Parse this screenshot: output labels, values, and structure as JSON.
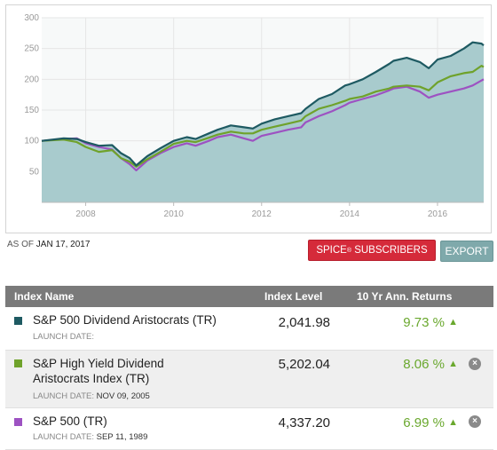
{
  "chart_data": {
    "type": "area",
    "x_ticks": [
      "2008",
      "2010",
      "2012",
      "2014",
      "2016"
    ],
    "y_ticks": [
      50,
      100,
      150,
      200,
      250,
      300
    ],
    "xlim": [
      2007.0,
      2017.05
    ],
    "ylim": [
      0,
      300
    ],
    "grid": true,
    "series": [
      {
        "name": "S&P 500 Dividend Aristocrats (TR)",
        "color": "#1e5a62",
        "fill": "#a8cbcd",
        "x": [
          2007.0,
          2007.5,
          2007.8,
          2008.0,
          2008.3,
          2008.6,
          2008.8,
          2009.0,
          2009.15,
          2009.4,
          2009.7,
          2010.0,
          2010.3,
          2010.5,
          2010.8,
          2011.0,
          2011.3,
          2011.6,
          2011.8,
          2012.0,
          2012.3,
          2012.6,
          2012.9,
          2013.0,
          2013.3,
          2013.6,
          2013.9,
          2014.0,
          2014.3,
          2014.6,
          2014.9,
          2015.0,
          2015.3,
          2015.6,
          2015.8,
          2016.0,
          2016.3,
          2016.6,
          2016.8,
          2017.0,
          2017.05
        ],
        "y": [
          100,
          104,
          103,
          98,
          92,
          93,
          80,
          72,
          60,
          75,
          88,
          100,
          106,
          103,
          112,
          118,
          125,
          122,
          120,
          128,
          135,
          140,
          145,
          152,
          168,
          176,
          190,
          192,
          200,
          212,
          225,
          230,
          235,
          228,
          218,
          232,
          238,
          250,
          260,
          258,
          255
        ]
      },
      {
        "name": "S&P High Yield Dividend Aristocrats Index (TR)",
        "color": "#6fa22b",
        "x": [
          2007.0,
          2007.5,
          2007.8,
          2008.0,
          2008.3,
          2008.6,
          2008.8,
          2009.0,
          2009.15,
          2009.4,
          2009.7,
          2010.0,
          2010.3,
          2010.5,
          2010.8,
          2011.0,
          2011.3,
          2011.6,
          2011.8,
          2012.0,
          2012.3,
          2012.6,
          2012.9,
          2013.0,
          2013.3,
          2013.6,
          2013.9,
          2014.0,
          2014.3,
          2014.6,
          2014.9,
          2015.0,
          2015.3,
          2015.6,
          2015.8,
          2016.0,
          2016.3,
          2016.6,
          2016.8,
          2017.0,
          2017.05
        ],
        "y": [
          100,
          102,
          98,
          90,
          82,
          85,
          72,
          66,
          58,
          70,
          82,
          95,
          100,
          98,
          105,
          110,
          115,
          112,
          112,
          118,
          123,
          128,
          133,
          140,
          152,
          158,
          165,
          168,
          172,
          180,
          185,
          188,
          190,
          188,
          182,
          195,
          205,
          210,
          212,
          222,
          220
        ]
      },
      {
        "name": "S&P 500 (TR)",
        "color": "#9d52c2",
        "x": [
          2007.0,
          2007.5,
          2007.8,
          2008.0,
          2008.3,
          2008.6,
          2008.8,
          2009.0,
          2009.15,
          2009.4,
          2009.7,
          2010.0,
          2010.3,
          2010.5,
          2010.8,
          2011.0,
          2011.3,
          2011.6,
          2011.8,
          2012.0,
          2012.3,
          2012.6,
          2012.9,
          2013.0,
          2013.3,
          2013.6,
          2013.9,
          2014.0,
          2014.3,
          2014.6,
          2014.9,
          2015.0,
          2015.3,
          2015.6,
          2015.8,
          2016.0,
          2016.3,
          2016.6,
          2016.8,
          2017.0,
          2017.05
        ],
        "y": [
          100,
          103,
          104,
          96,
          90,
          86,
          72,
          62,
          52,
          68,
          80,
          90,
          96,
          92,
          100,
          106,
          110,
          104,
          100,
          108,
          113,
          118,
          122,
          130,
          140,
          148,
          158,
          162,
          168,
          174,
          182,
          185,
          188,
          180,
          170,
          175,
          180,
          185,
          190,
          198,
          200
        ]
      }
    ]
  },
  "as_of": {
    "label": "AS OF",
    "date": "JAN 17, 2017"
  },
  "buttons": {
    "spice_label": "SPICE",
    "spice_sup": "®",
    "spice_suffix": " SUBSCRIBERS",
    "export_label": "EXPORT"
  },
  "table": {
    "headers": {
      "name": "Index Name",
      "level": "Index Level",
      "returns": "10 Yr Ann. Returns"
    },
    "rows": [
      {
        "name": "S&P 500 Dividend Aristocrats (TR)",
        "launch_label": "LAUNCH DATE:",
        "launch_date": "",
        "level": "2,041.98",
        "returns": "9.73 %",
        "color": "#1e5a62"
      },
      {
        "name_line1": "S&P High Yield Dividend",
        "name_line2": "Aristocrats Index (TR)",
        "launch_label": "LAUNCH DATE:",
        "launch_date": "NOV 09, 2005",
        "level": "5,202.04",
        "returns": "8.06 %",
        "color": "#6fa22b"
      },
      {
        "name": "S&P 500 (TR)",
        "launch_label": "LAUNCH DATE:",
        "launch_date": "SEP 11, 1989",
        "level": "4,337.20",
        "returns": "6.99 %",
        "color": "#9d52c2"
      }
    ],
    "up_icon": "▲",
    "close_icon": "×"
  }
}
